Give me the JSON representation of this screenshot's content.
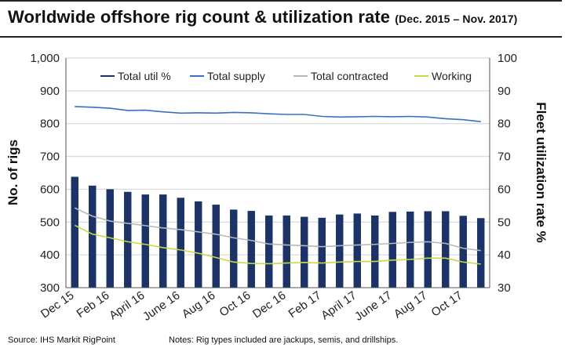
{
  "header": {
    "title": "Worldwide offshore rig count & utilization rate",
    "subtitle": "(Dec. 2015 – Nov. 2017)"
  },
  "footer": {
    "source": "Source: IHS Markit RigPoint",
    "notes": "Notes: Rig types included are jackups, semis, and drillships."
  },
  "colors": {
    "bars": "#1b3366",
    "total_supply": "#3b6fc5",
    "total_contracted": "#b8b8b8",
    "working": "#c9d84a",
    "grid": "#d0d0d0"
  },
  "chart_data": {
    "type": "bar",
    "ylabel": "No. of rigs",
    "y2label": "Fleet utilization rate %",
    "ylim": [
      300,
      1000
    ],
    "y2lim": [
      30,
      100
    ],
    "yticks": [
      "300",
      "400",
      "500",
      "600",
      "700",
      "800",
      "900",
      "1,000"
    ],
    "y2ticks": [
      "30",
      "40",
      "50",
      "60",
      "70",
      "80",
      "90",
      "100"
    ],
    "grid": true,
    "legend_position": "top",
    "xtick_labels": [
      "Dec 15",
      "Feb 16",
      "April 16",
      "June 16",
      "Aug 16",
      "Oct 16",
      "Dec 16",
      "Feb 17",
      "April 17",
      "June 17",
      "Aug 17",
      "Oct 17"
    ],
    "categories": [
      "Dec 15",
      "Jan 16",
      "Feb 16",
      "Mar 16",
      "April 16",
      "May 16",
      "June 16",
      "Jul 16",
      "Aug 16",
      "Sep 16",
      "Oct 16",
      "Nov 16",
      "Dec 16",
      "Jan 17",
      "Feb 17",
      "Mar 17",
      "April 17",
      "May 17",
      "June 17",
      "Jul 17",
      "Aug 17",
      "Sep 17",
      "Oct 17",
      "Nov 17"
    ],
    "series": [
      {
        "name": "Total util %",
        "axis": "right",
        "kind": "bar",
        "values": [
          63.8,
          61.1,
          60.0,
          59.2,
          58.4,
          58.4,
          57.4,
          56.3,
          55.3,
          53.8,
          53.4,
          52.0,
          52.0,
          51.6,
          51.3,
          52.3,
          52.6,
          52.0,
          53.1,
          53.2,
          53.3,
          53.3,
          51.9,
          51.2
        ]
      },
      {
        "name": "Total supply",
        "axis": "left",
        "kind": "line",
        "values": [
          852,
          850,
          847,
          840,
          841,
          836,
          832,
          833,
          832,
          834,
          833,
          830,
          828,
          828,
          822,
          820,
          821,
          822,
          821,
          822,
          820,
          815,
          812,
          806
        ]
      },
      {
        "name": "Total contracted",
        "axis": "left",
        "kind": "line",
        "values": [
          543,
          518,
          503,
          496,
          489,
          482,
          477,
          470,
          463,
          452,
          444,
          433,
          430,
          428,
          425,
          428,
          430,
          432,
          435,
          438,
          440,
          435,
          420,
          413
        ]
      },
      {
        "name": "Working",
        "axis": "left",
        "kind": "line",
        "values": [
          490,
          463,
          452,
          440,
          432,
          422,
          415,
          405,
          392,
          378,
          374,
          373,
          375,
          377,
          375,
          378,
          380,
          380,
          384,
          386,
          390,
          390,
          378,
          372
        ]
      }
    ]
  }
}
